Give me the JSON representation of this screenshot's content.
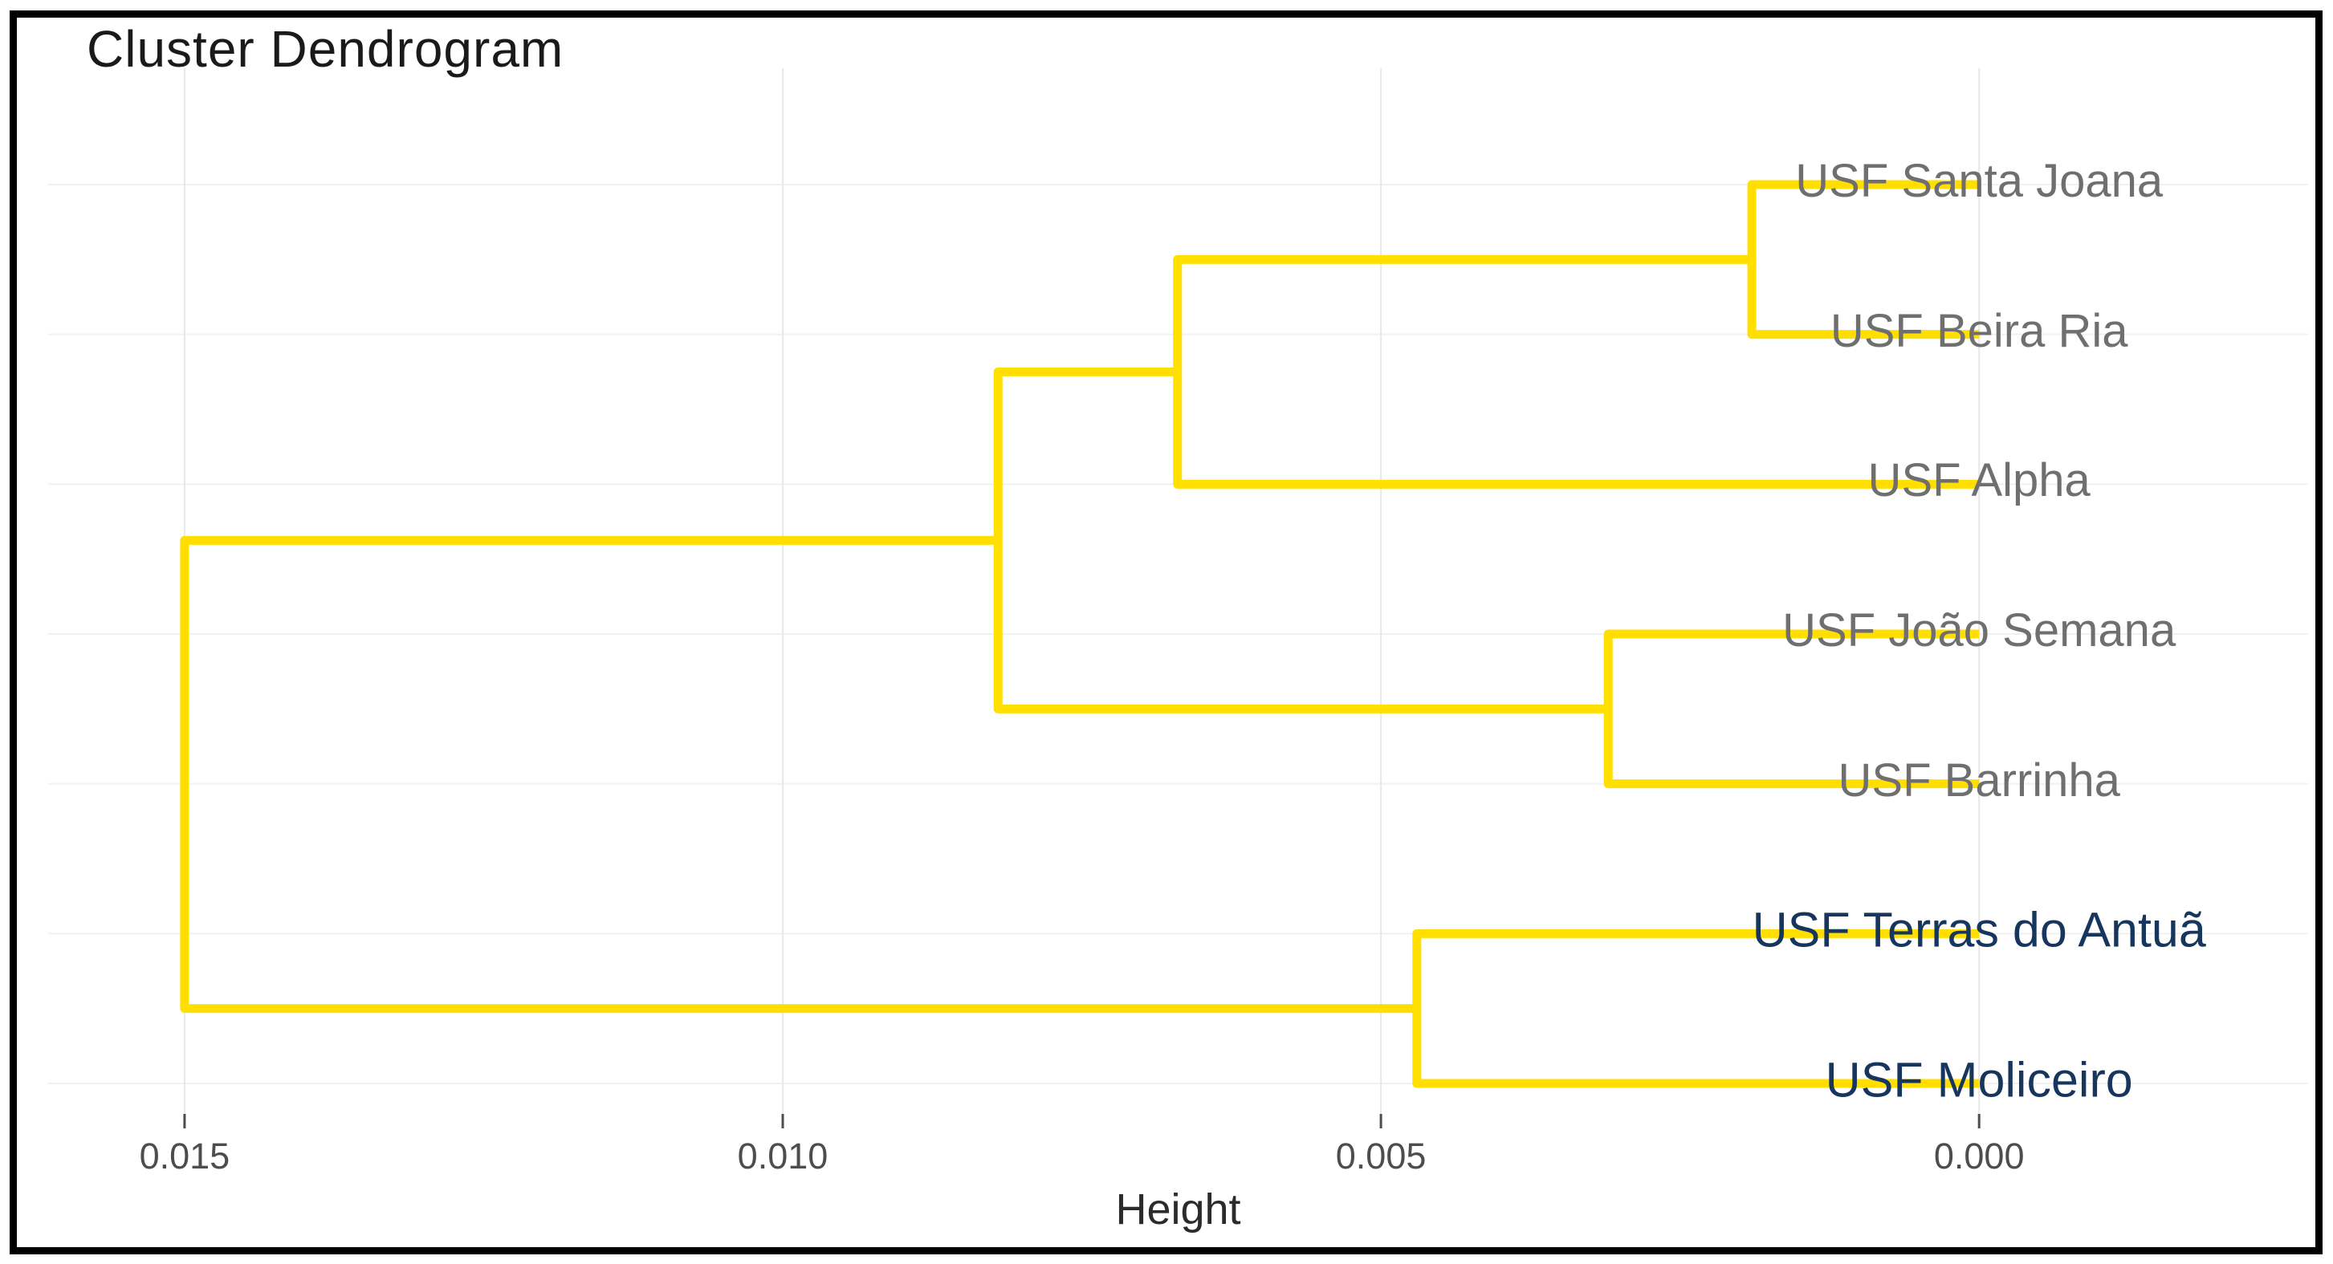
{
  "chart_data": {
    "type": "dendrogram",
    "orientation": "horizontal",
    "title": "Cluster Dendrogram",
    "xlabel": "Height",
    "axis": {
      "ticks": [
        0.015,
        0.01,
        0.005,
        0.0
      ],
      "tick_labels": [
        "0.015",
        "0.010",
        "0.005",
        "0.000"
      ],
      "xlim": [
        0.01614,
        -0.00275
      ],
      "grid": true
    },
    "leaves": [
      {
        "label": "USF Santa Joana",
        "highlighted": false
      },
      {
        "label": "USF Beira Ria",
        "highlighted": false
      },
      {
        "label": "USF Alpha",
        "highlighted": false
      },
      {
        "label": "USF João Semana",
        "highlighted": false
      },
      {
        "label": "USF Barrinha",
        "highlighted": false
      },
      {
        "label": "USF Terras do Antuã",
        "highlighted": true
      },
      {
        "label": "USF Moliceiro",
        "highlighted": true
      }
    ],
    "merge_heights": [
      0.0019,
      0.0067,
      0.0031,
      0.0082,
      0.0047,
      0.015
    ],
    "tree": {
      "height": 0.015,
      "children": [
        {
          "height": 0.0082,
          "children": [
            {
              "height": 0.0067,
              "children": [
                {
                  "height": 0.0019,
                  "children": [
                    {
                      "leaf": 0
                    },
                    {
                      "leaf": 1
                    }
                  ]
                },
                {
                  "leaf": 2
                }
              ]
            },
            {
              "height": 0.0031,
              "children": [
                {
                  "leaf": 3
                },
                {
                  "leaf": 4
                }
              ]
            }
          ]
        },
        {
          "height": 0.0047,
          "children": [
            {
              "leaf": 5
            },
            {
              "leaf": 6
            }
          ]
        }
      ]
    },
    "colors": {
      "branch": "#FFDE00",
      "leaf_label_default": "#6F6F6F",
      "leaf_label_highlight": "#17365D",
      "grid_vertical": "#E8E8E8",
      "grid_horizontal": "#F1F1F1",
      "tick_mark": "#4D4D4D",
      "tick_label": "#4D4D4D",
      "title": "#1A1A1A",
      "axis_label": "#2B2B2B",
      "frame": "#000000"
    }
  }
}
